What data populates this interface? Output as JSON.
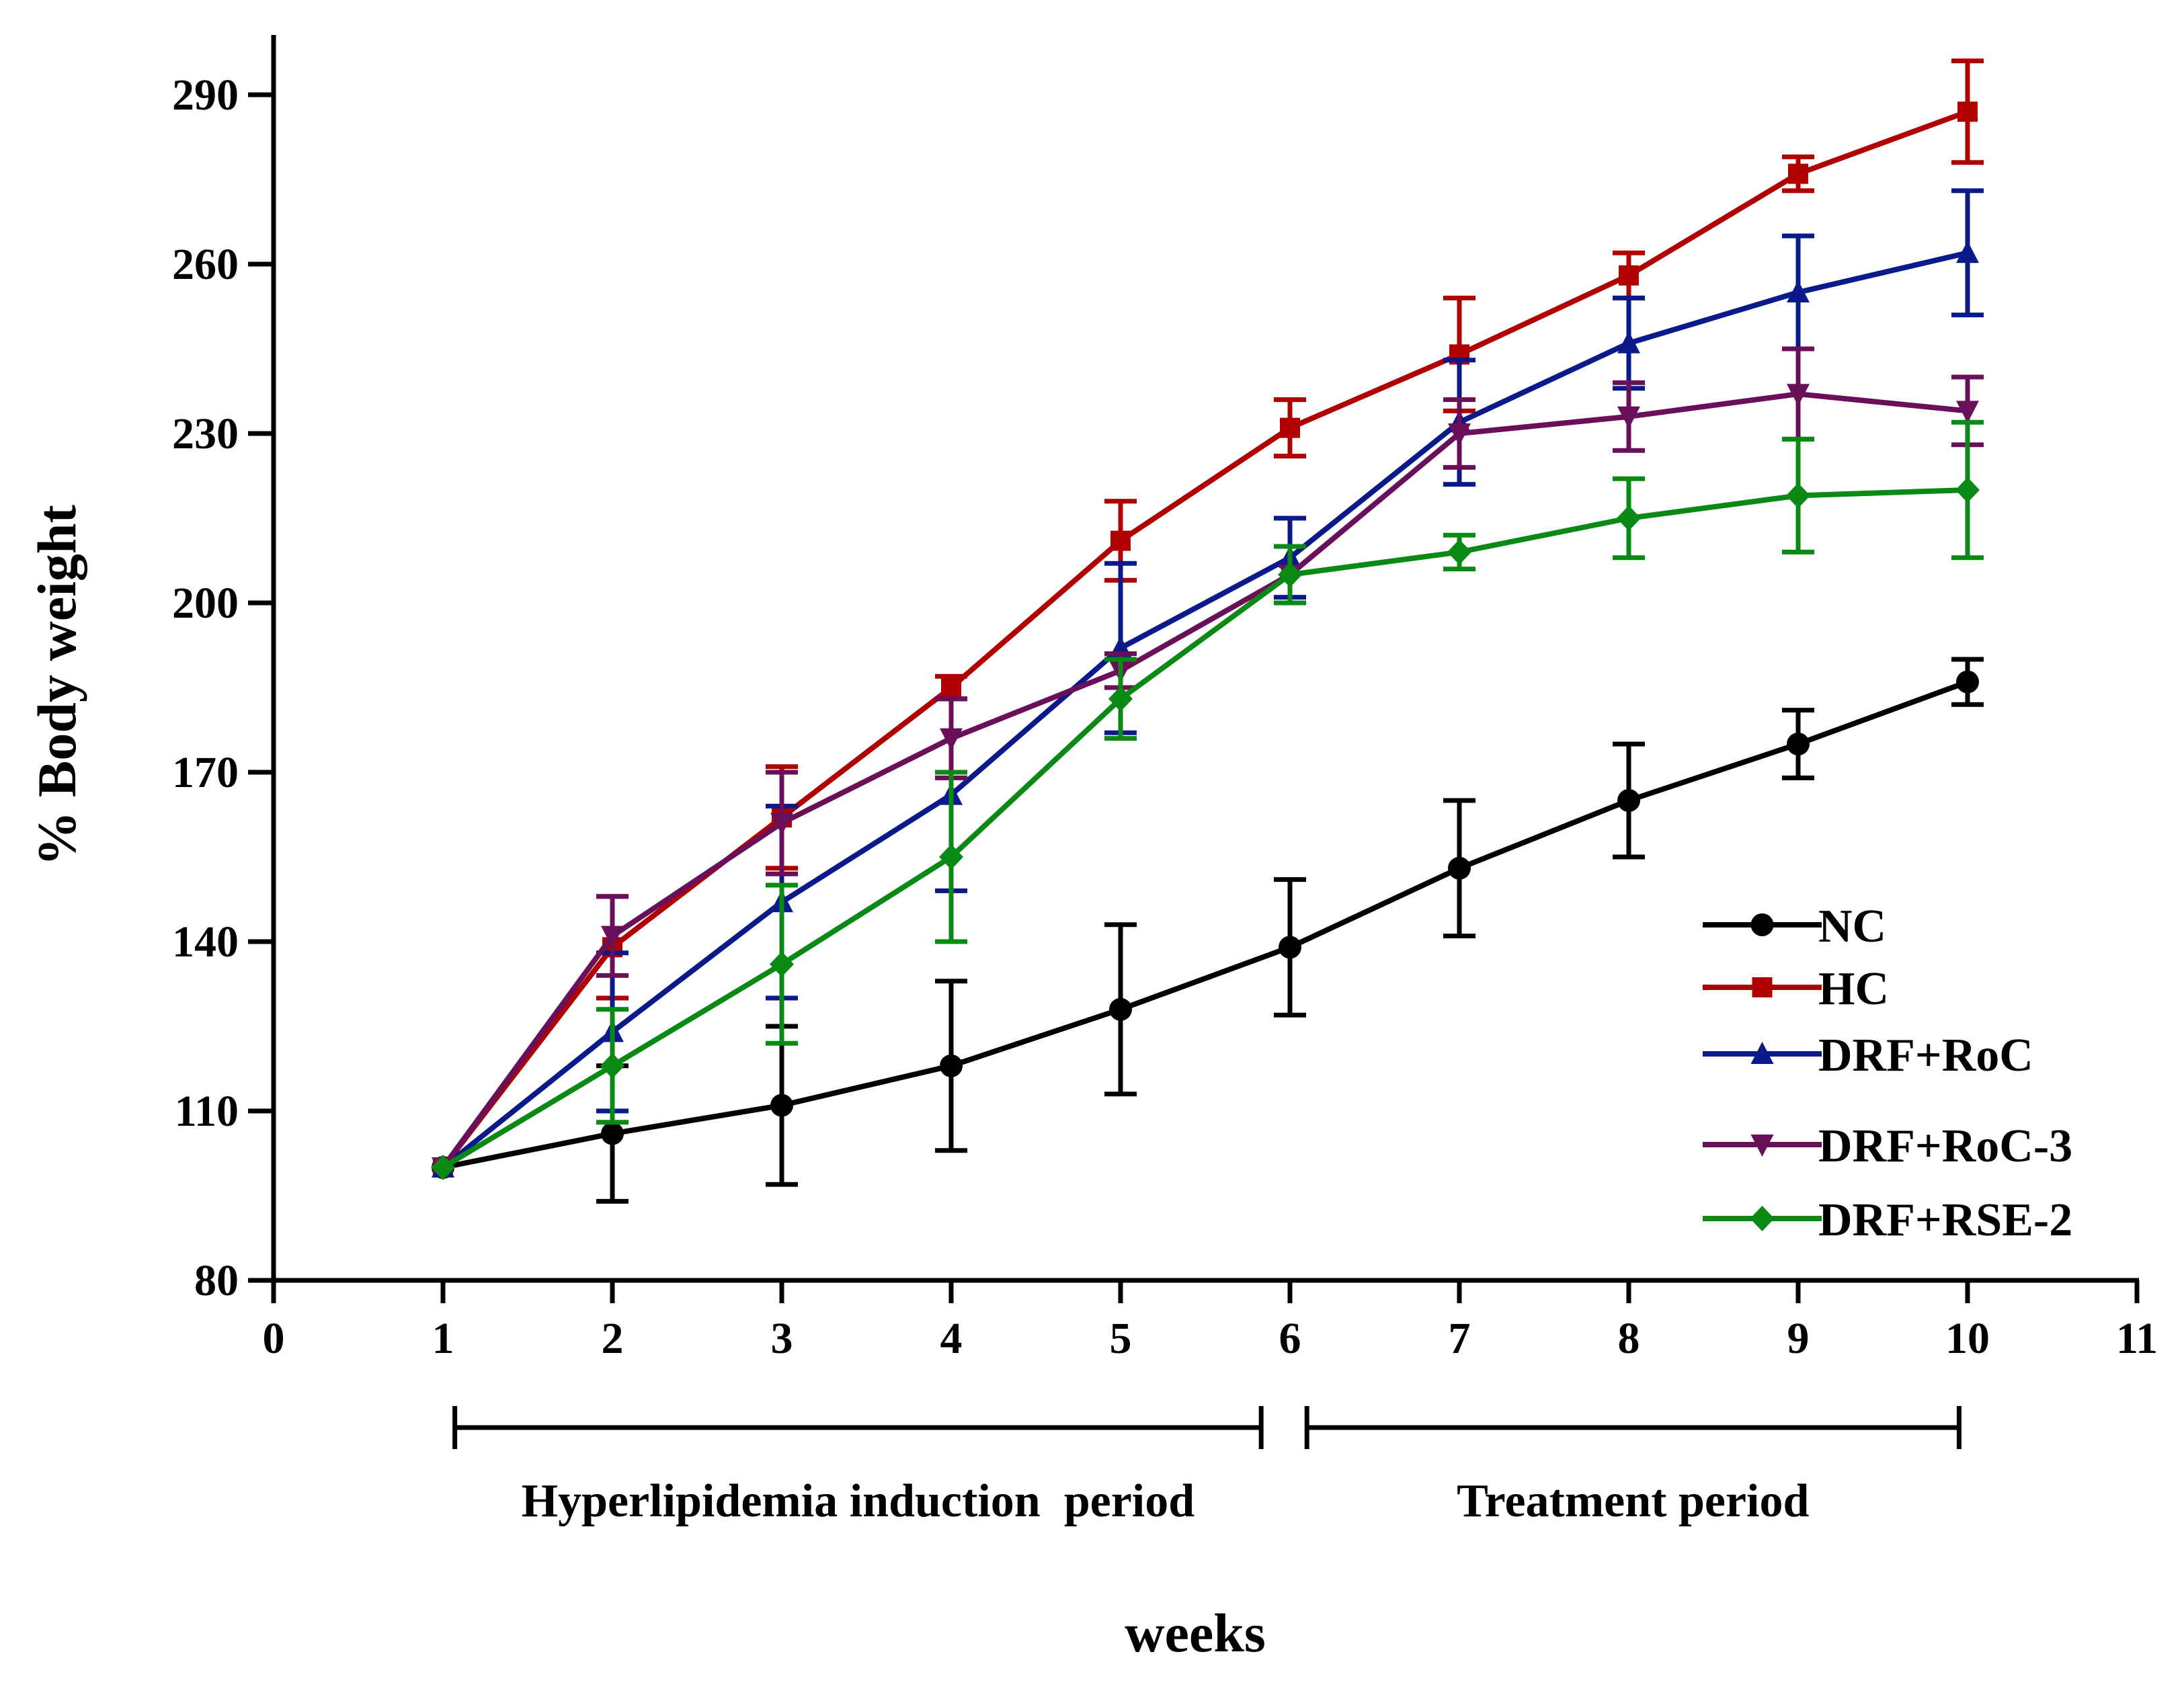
{
  "chart_data": {
    "type": "line",
    "title": "",
    "xlabel": "weeks",
    "ylabel": "% Body weight",
    "xlim": [
      0,
      11
    ],
    "ylim": [
      80,
      300
    ],
    "x_ticks": [
      "0",
      "1",
      "2",
      "3",
      "4",
      "5",
      "6",
      "7",
      "8",
      "9",
      "10",
      "11"
    ],
    "y_ticks": [
      "80",
      "110",
      "140",
      "170",
      "200",
      "230",
      "260",
      "290"
    ],
    "x": [
      1,
      2,
      3,
      4,
      5,
      6,
      7,
      8,
      9,
      10
    ],
    "grid": false,
    "legend_position": "bottom-right",
    "series": [
      {
        "name": "NC",
        "color": "#000000",
        "marker": "circle",
        "values": [
          100,
          106,
          111,
          118,
          128,
          139,
          153,
          165,
          175,
          186
        ],
        "errors": [
          0,
          12,
          14,
          15,
          15,
          12,
          12,
          10,
          6,
          4
        ]
      },
      {
        "name": "HC",
        "color": "#b00000",
        "marker": "square",
        "values": [
          100,
          139,
          162,
          185,
          211,
          231,
          244,
          258,
          276,
          287
        ],
        "errors": [
          0,
          9,
          9,
          2,
          7,
          5,
          10,
          4,
          3,
          9
        ]
      },
      {
        "name": "DRF+RoC",
        "color": "#0a1a8a",
        "marker": "triangle-up",
        "values": [
          100,
          124,
          147,
          166,
          192,
          208,
          232,
          246,
          255,
          262
        ],
        "errors": [
          0,
          14,
          17,
          17,
          15,
          7,
          11,
          8,
          10,
          11
        ]
      },
      {
        "name": "DRF+RoC-3",
        "color": "#6a0f5a",
        "marker": "triangle-down",
        "values": [
          100,
          141,
          161,
          176,
          188,
          205,
          230,
          233,
          237,
          234
        ],
        "errors": [
          0,
          7,
          9,
          7,
          3,
          5,
          6,
          6,
          8,
          6
        ]
      },
      {
        "name": "DRF+RSE-2",
        "color": "#0a8a14",
        "marker": "diamond",
        "values": [
          100,
          118,
          136,
          155,
          183,
          205,
          209,
          215,
          219,
          220
        ],
        "errors": [
          0,
          10,
          14,
          15,
          7,
          5,
          3,
          7,
          10,
          12
        ]
      }
    ],
    "periods": [
      {
        "label": "Hyperlipidemia induction  period",
        "from": 1.07,
        "to": 5.83
      },
      {
        "label": "Treatment period",
        "from": 6.1,
        "to": 9.95
      }
    ]
  }
}
